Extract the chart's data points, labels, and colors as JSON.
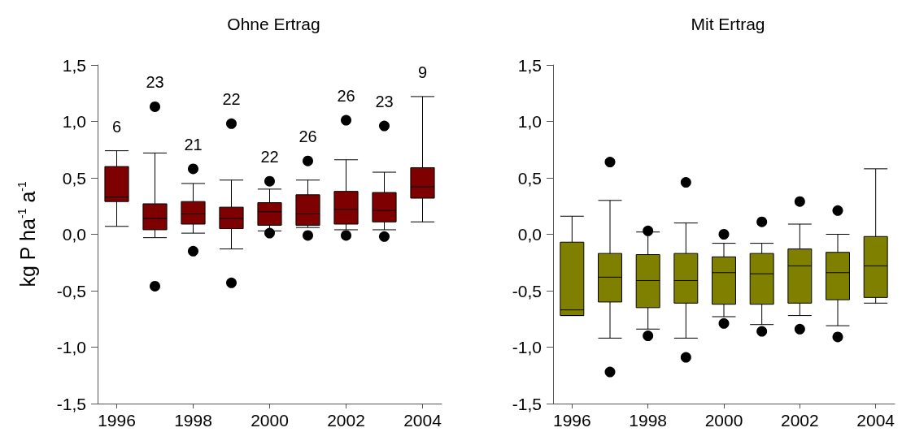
{
  "chart_data": [
    {
      "type": "box",
      "title": "Ohne Ertrag",
      "ylabel": "kg P ha$^{-1}$ a$^{-1}$",
      "categories": [
        "1996",
        null,
        "1998",
        null,
        "2000",
        null,
        "2002",
        null,
        "2004"
      ],
      "series": [
        {
          "color": "#7f0000",
          "boxes": [
            {
              "low": 0.07,
              "q1": 0.29,
              "median": 0.33,
              "q3": 0.6,
              "high": 0.74
            },
            {
              "low": -0.03,
              "q1": 0.04,
              "median": 0.14,
              "q3": 0.27,
              "high": 0.72,
              "outliers": [
                1.13,
                -0.46
              ]
            },
            {
              "low": 0.01,
              "q1": 0.09,
              "median": 0.18,
              "q3": 0.29,
              "high": 0.45,
              "outliers": [
                0.58,
                -0.15
              ]
            },
            {
              "low": -0.13,
              "q1": 0.05,
              "median": 0.14,
              "q3": 0.24,
              "high": 0.48,
              "outliers": [
                0.98,
                -0.43
              ]
            },
            {
              "low": 0.03,
              "q1": 0.08,
              "median": 0.2,
              "q3": 0.28,
              "high": 0.4,
              "outliers": [
                0.47,
                0.01
              ]
            },
            {
              "low": 0.06,
              "q1": 0.08,
              "median": 0.18,
              "q3": 0.35,
              "high": 0.48,
              "outliers": [
                0.65,
                -0.01
              ]
            },
            {
              "low": 0.04,
              "q1": 0.09,
              "median": 0.22,
              "q3": 0.38,
              "high": 0.66,
              "outliers": [
                1.01,
                -0.01
              ]
            },
            {
              "low": 0.04,
              "q1": 0.11,
              "median": 0.21,
              "q3": 0.37,
              "high": 0.55,
              "outliers": [
                0.96,
                -0.02
              ]
            },
            {
              "low": 0.11,
              "q1": 0.32,
              "median": 0.42,
              "q3": 0.59,
              "high": 1.22
            }
          ]
        }
      ],
      "annotations": [
        "6",
        "23",
        "21",
        "22",
        "22",
        "26",
        "26",
        "23",
        "9"
      ],
      "ylim": [
        -1.5,
        1.5
      ],
      "yticks": [
        {
          "value": -1.5,
          "label": "-1,5"
        },
        {
          "value": -1,
          "label": "-1,0"
        },
        {
          "value": -0.5,
          "label": "-0,5"
        },
        {
          "value": 0,
          "label": "0,0"
        },
        {
          "value": 0.5,
          "label": "0,5"
        },
        {
          "value": 1,
          "label": "1,0"
        },
        {
          "value": 1.5,
          "label": "1,5"
        }
      ],
      "grid": false
    },
    {
      "type": "box",
      "title": "Mit Ertrag",
      "categories": [
        "1996",
        null,
        "1998",
        null,
        "2000",
        null,
        "2002",
        null,
        "2004"
      ],
      "series": [
        {
          "color": "#808000",
          "boxes": [
            {
              "low": -0.72,
              "q1": -0.72,
              "median": -0.67,
              "q3": -0.07,
              "high": 0.16
            },
            {
              "low": -0.92,
              "q1": -0.6,
              "median": -0.38,
              "q3": -0.17,
              "high": 0.3,
              "outliers": [
                0.64,
                -1.22
              ]
            },
            {
              "low": -0.84,
              "q1": -0.65,
              "median": -0.41,
              "q3": -0.18,
              "high": 0.02,
              "outliers": [
                0.03,
                -0.9
              ]
            },
            {
              "low": -0.92,
              "q1": -0.61,
              "median": -0.41,
              "q3": -0.17,
              "high": 0.1,
              "outliers": [
                0.46,
                -1.09
              ]
            },
            {
              "low": -0.73,
              "q1": -0.62,
              "median": -0.34,
              "q3": -0.2,
              "high": -0.08,
              "outliers": [
                0.0,
                -0.79
              ]
            },
            {
              "low": -0.8,
              "q1": -0.62,
              "median": -0.35,
              "q3": -0.17,
              "high": -0.08,
              "outliers": [
                0.11,
                -0.86
              ]
            },
            {
              "low": -0.72,
              "q1": -0.61,
              "median": -0.28,
              "q3": -0.13,
              "high": 0.09,
              "outliers": [
                0.29,
                -0.84
              ]
            },
            {
              "low": -0.81,
              "q1": -0.58,
              "median": -0.34,
              "q3": -0.16,
              "high": 0.0,
              "outliers": [
                0.21,
                -0.91
              ]
            },
            {
              "low": -0.61,
              "q1": -0.56,
              "median": -0.28,
              "q3": -0.02,
              "high": 0.58
            }
          ]
        }
      ],
      "ylim": [
        -1.5,
        1.5
      ],
      "yticks": [
        {
          "value": -1.5,
          "label": "-1,5"
        },
        {
          "value": -1,
          "label": "-1,0"
        },
        {
          "value": -0.5,
          "label": "-0,5"
        },
        {
          "value": 0,
          "label": "0,0"
        },
        {
          "value": 0.5,
          "label": "0,5"
        },
        {
          "value": 1,
          "label": "1,0"
        },
        {
          "value": 1.5,
          "label": "1,5"
        }
      ],
      "grid": false
    }
  ]
}
